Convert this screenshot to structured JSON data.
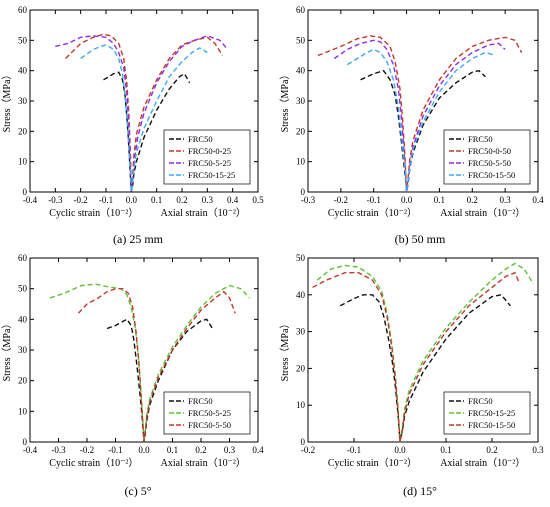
{
  "chart_data": [
    {
      "type": "line",
      "caption": "(a) 25 mm",
      "ylabel": "Stress（MPa）",
      "xlabel_left": "Cyclic strain（10⁻²）",
      "xlabel_right": "Axial strain（10⁻²）",
      "xlim": [
        -0.4,
        0.5
      ],
      "ylim": [
        0,
        60
      ],
      "xticks": [
        "-0.4",
        "-0.3",
        "-0.2",
        "-0.1",
        "0.0",
        "0.1",
        "0.2",
        "0.3",
        "0.4",
        "0.5"
      ],
      "yticks": [
        "0",
        "10",
        "20",
        "30",
        "40",
        "50",
        "60"
      ],
      "legend_position": "bottom-right",
      "series": [
        {
          "name": "FRC50",
          "color": "#111111",
          "x": [
            -0.11,
            -0.07,
            -0.05,
            -0.035,
            -0.025,
            -0.018,
            -0.012,
            -0.008,
            -0.004,
            0.0,
            0.005,
            0.01,
            0.02,
            0.05,
            0.1,
            0.15,
            0.19,
            0.21,
            0.23
          ],
          "y": [
            37,
            39,
            39.5,
            37,
            32,
            25,
            18,
            12,
            6,
            0,
            2,
            6,
            10,
            18,
            27,
            34,
            38,
            39,
            36
          ]
        },
        {
          "name": "FRC50-0-25",
          "color": "#c0392b",
          "x": [
            -0.26,
            -0.2,
            -0.15,
            -0.11,
            -0.08,
            -0.05,
            -0.03,
            -0.018,
            -0.01,
            -0.004,
            0.0,
            0.005,
            0.01,
            0.02,
            0.05,
            0.1,
            0.15,
            0.2,
            0.25,
            0.3,
            0.33,
            0.36
          ],
          "y": [
            44,
            49,
            51,
            52,
            51.5,
            49,
            44,
            36,
            26,
            14,
            0,
            5,
            12,
            19,
            28,
            37,
            44,
            48.5,
            50,
            51,
            49,
            45
          ]
        },
        {
          "name": "FRC50-5-25",
          "color": "#8e2ee6",
          "x": [
            -0.3,
            -0.25,
            -0.2,
            -0.15,
            -0.1,
            -0.07,
            -0.05,
            -0.03,
            -0.02,
            -0.012,
            -0.006,
            0.0,
            0.008,
            0.015,
            0.025,
            0.05,
            0.1,
            0.15,
            0.2,
            0.25,
            0.3,
            0.35,
            0.38
          ],
          "y": [
            48,
            49,
            51,
            51.5,
            51,
            49,
            46,
            41,
            34,
            25,
            14,
            0,
            6,
            12,
            18,
            26,
            36,
            43,
            48,
            50,
            51.5,
            50,
            47
          ]
        },
        {
          "name": "FRC50-15-25",
          "color": "#3fa9f5",
          "x": [
            -0.2,
            -0.15,
            -0.12,
            -0.1,
            -0.07,
            -0.05,
            -0.035,
            -0.025,
            -0.015,
            -0.008,
            -0.003,
            0.0,
            0.005,
            0.01,
            0.02,
            0.05,
            0.1,
            0.15,
            0.2,
            0.24,
            0.27,
            0.3
          ],
          "y": [
            44,
            47,
            48,
            48.5,
            47,
            44,
            39,
            32,
            22,
            12,
            5,
            0,
            3,
            8,
            13,
            21,
            30,
            38,
            43,
            46,
            47.5,
            46
          ]
        }
      ]
    },
    {
      "type": "line",
      "caption": "(b) 50 mm",
      "ylabel": "Stress（MPa）",
      "xlabel_left": "Cyclic strain（10⁻²）",
      "xlabel_right": "Axial strain（10⁻²）",
      "xlim": [
        -0.3,
        0.4
      ],
      "ylim": [
        0,
        60
      ],
      "xticks": [
        "-0.3",
        "-0.2",
        "-0.1",
        "0.0",
        "0.1",
        "0.2",
        "0.3",
        "0.4"
      ],
      "yticks": [
        "0",
        "10",
        "20",
        "30",
        "40",
        "50",
        "60"
      ],
      "legend_position": "bottom-right",
      "series": [
        {
          "name": "FRC50",
          "color": "#111111",
          "x": [
            -0.14,
            -0.1,
            -0.07,
            -0.05,
            -0.035,
            -0.025,
            -0.015,
            -0.008,
            -0.003,
            0.0,
            0.005,
            0.01,
            0.02,
            0.05,
            0.1,
            0.15,
            0.2,
            0.22,
            0.24
          ],
          "y": [
            37,
            39,
            40,
            37,
            32,
            25,
            16,
            9,
            4,
            0,
            3,
            8,
            13,
            22,
            31,
            36,
            39.5,
            40,
            38
          ]
        },
        {
          "name": "FRC50-0-50",
          "color": "#c0392b",
          "x": [
            -0.27,
            -0.2,
            -0.15,
            -0.11,
            -0.08,
            -0.05,
            -0.035,
            -0.02,
            -0.012,
            -0.005,
            0.0,
            0.005,
            0.01,
            0.02,
            0.05,
            0.1,
            0.15,
            0.2,
            0.25,
            0.3,
            0.33,
            0.35
          ],
          "y": [
            45,
            48,
            50.5,
            51.5,
            51,
            48,
            43,
            34,
            24,
            12,
            0,
            5,
            11,
            17,
            27,
            37,
            44,
            48,
            50,
            51,
            50,
            46
          ]
        },
        {
          "name": "FRC50-5-50",
          "color": "#8e2ee6",
          "x": [
            -0.22,
            -0.18,
            -0.14,
            -0.1,
            -0.08,
            -0.06,
            -0.04,
            -0.025,
            -0.015,
            -0.008,
            -0.003,
            0.0,
            0.005,
            0.01,
            0.02,
            0.05,
            0.1,
            0.15,
            0.2,
            0.25,
            0.28,
            0.3
          ],
          "y": [
            44,
            47,
            49,
            50,
            49.5,
            47,
            42,
            34,
            24,
            14,
            6,
            0,
            4,
            9,
            15,
            25,
            35,
            42,
            46,
            48.5,
            49,
            47
          ]
        },
        {
          "name": "FRC50-15-50",
          "color": "#3fa9f5",
          "x": [
            -0.18,
            -0.15,
            -0.12,
            -0.1,
            -0.08,
            -0.06,
            -0.04,
            -0.025,
            -0.015,
            -0.007,
            -0.002,
            0.0,
            0.005,
            0.01,
            0.02,
            0.05,
            0.1,
            0.15,
            0.2,
            0.24,
            0.27
          ],
          "y": [
            42,
            44,
            46,
            47,
            46,
            43,
            37,
            28,
            18,
            10,
            4,
            0,
            4,
            8,
            14,
            23,
            33,
            40,
            44,
            46,
            45
          ]
        }
      ]
    },
    {
      "type": "line",
      "caption": "(c) 5°",
      "ylabel": "Stress（MPa）",
      "xlabel_left": "Cyclic strain（10⁻²）",
      "xlabel_right": "Axial strain（10⁻²）",
      "xlim": [
        -0.4,
        0.4
      ],
      "ylim": [
        0,
        60
      ],
      "xticks": [
        "-0.4",
        "-0.3",
        "-0.2",
        "-0.1",
        "0.0",
        "0.1",
        "0.2",
        "0.3",
        "0.4"
      ],
      "yticks": [
        "0",
        "10",
        "20",
        "30",
        "40",
        "50",
        "60"
      ],
      "legend_position": "bottom-right",
      "series": [
        {
          "name": "FRC50",
          "color": "#111111",
          "x": [
            -0.13,
            -0.1,
            -0.08,
            -0.06,
            -0.045,
            -0.035,
            -0.025,
            -0.017,
            -0.01,
            -0.005,
            0.0,
            0.005,
            0.01,
            0.02,
            0.05,
            0.1,
            0.15,
            0.2,
            0.22,
            0.24
          ],
          "y": [
            37,
            38,
            39,
            40,
            38,
            33,
            25,
            18,
            12,
            6,
            0,
            3,
            7,
            12,
            20,
            30,
            36,
            39.5,
            40,
            37
          ]
        },
        {
          "name": "FRC50-5-25",
          "color": "#5cc433",
          "x": [
            -0.33,
            -0.28,
            -0.22,
            -0.17,
            -0.12,
            -0.08,
            -0.06,
            -0.045,
            -0.03,
            -0.02,
            -0.012,
            -0.005,
            0.0,
            0.005,
            0.01,
            0.02,
            0.05,
            0.1,
            0.15,
            0.2,
            0.25,
            0.3,
            0.34,
            0.37
          ],
          "y": [
            47,
            48.5,
            51,
            51.5,
            50.5,
            50,
            48,
            44,
            37,
            28,
            18,
            8,
            0,
            4,
            9,
            14,
            22,
            31,
            38,
            44,
            48.5,
            51,
            50,
            47
          ]
        },
        {
          "name": "FRC50-5-50",
          "color": "#c0392b",
          "x": [
            -0.23,
            -0.2,
            -0.16,
            -0.13,
            -0.1,
            -0.075,
            -0.055,
            -0.04,
            -0.028,
            -0.018,
            -0.01,
            -0.004,
            0.0,
            0.005,
            0.01,
            0.02,
            0.05,
            0.1,
            0.15,
            0.2,
            0.25,
            0.28,
            0.3,
            0.32
          ],
          "y": [
            42,
            45,
            47,
            49,
            50,
            50,
            48.5,
            44,
            36,
            26,
            15,
            6,
            0,
            4,
            8,
            13,
            21,
            30,
            37,
            43,
            47,
            49,
            47,
            42
          ]
        }
      ]
    },
    {
      "type": "line",
      "caption": "(d) 15°",
      "ylabel": "Stress（MPa）",
      "xlabel_left": "Cyclic strain（10⁻²）",
      "xlabel_right": "Axial strain（10⁻²）",
      "xlim": [
        -0.2,
        0.3
      ],
      "ylim": [
        0,
        50
      ],
      "xticks": [
        "-0.2",
        "-0.1",
        "0.0",
        "0.1",
        "0.2",
        "0.3"
      ],
      "yticks": [
        "0",
        "10",
        "20",
        "30",
        "40",
        "50"
      ],
      "legend_position": "bottom-right",
      "series": [
        {
          "name": "FRC50",
          "color": "#111111",
          "x": [
            -0.13,
            -0.1,
            -0.08,
            -0.06,
            -0.045,
            -0.035,
            -0.025,
            -0.017,
            -0.01,
            -0.004,
            0.0,
            0.005,
            0.01,
            0.02,
            0.05,
            0.1,
            0.15,
            0.2,
            0.22,
            0.24
          ],
          "y": [
            37,
            39,
            40,
            40,
            38,
            34,
            28,
            22,
            15,
            7,
            0,
            3,
            7,
            11,
            19,
            28,
            35,
            39.5,
            40,
            37
          ]
        },
        {
          "name": "FRC50-15-25",
          "color": "#5cc433",
          "x": [
            -0.18,
            -0.15,
            -0.12,
            -0.09,
            -0.06,
            -0.04,
            -0.028,
            -0.018,
            -0.01,
            -0.004,
            0.0,
            0.005,
            0.01,
            0.02,
            0.05,
            0.1,
            0.15,
            0.2,
            0.23,
            0.25,
            0.27,
            0.29
          ],
          "y": [
            44,
            47,
            48,
            47.5,
            45,
            41,
            35,
            27,
            18,
            9,
            0,
            4,
            9,
            14,
            22,
            31,
            38,
            44,
            47,
            48.5,
            47,
            43
          ]
        },
        {
          "name": "FRC50-15-50",
          "color": "#c0392b",
          "x": [
            -0.19,
            -0.16,
            -0.12,
            -0.09,
            -0.06,
            -0.04,
            -0.028,
            -0.018,
            -0.01,
            -0.004,
            0.0,
            0.005,
            0.01,
            0.02,
            0.05,
            0.1,
            0.15,
            0.2,
            0.23,
            0.25,
            0.26
          ],
          "y": [
            42,
            44,
            46,
            46,
            44,
            40,
            34,
            26,
            17,
            8,
            0,
            3,
            8,
            13,
            21,
            30,
            37,
            42,
            45,
            46,
            43
          ]
        }
      ]
    }
  ]
}
